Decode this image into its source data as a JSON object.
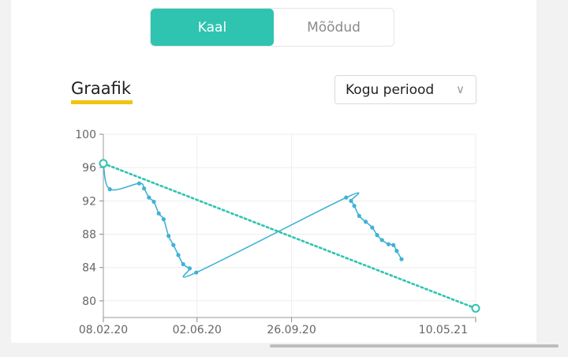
{
  "segment": {
    "active_label": "Kaal",
    "inactive_label": "Mõõdud"
  },
  "section": {
    "title": "Graafik"
  },
  "period_select": {
    "selected": "Kogu periood",
    "icon": "chevron-down-icon"
  },
  "colors": {
    "accent": "#2ec4b0",
    "line": "#3fb2d6",
    "underline": "#f1c40f"
  },
  "chart_data": {
    "type": "line",
    "x_ticks": [
      "08.02.20",
      "02.06.20",
      "26.09.20",
      "10.05.21"
    ],
    "x_range": [
      "08.02.20",
      "10.05.21"
    ],
    "ylim": [
      78,
      100
    ],
    "y_ticks": [
      100,
      96,
      92,
      88,
      84,
      80
    ],
    "grid": true,
    "series": [
      {
        "style": "solid-with-points",
        "points": [
          {
            "x": "08.02.20",
            "y": 96.5
          },
          {
            "x": "16.02.20",
            "y": 93.4
          },
          {
            "x": "23.03.20",
            "y": 94.1
          },
          {
            "x": "29.03.20",
            "y": 93.5
          },
          {
            "x": "04.04.20",
            "y": 92.4
          },
          {
            "x": "10.04.20",
            "y": 91.9
          },
          {
            "x": "16.04.20",
            "y": 90.5
          },
          {
            "x": "22.04.20",
            "y": 89.8
          },
          {
            "x": "28.04.20",
            "y": 87.8
          },
          {
            "x": "04.05.20",
            "y": 86.7
          },
          {
            "x": "10.05.20",
            "y": 85.5
          },
          {
            "x": "16.05.20",
            "y": 84.4
          },
          {
            "x": "24.05.20",
            "y": 83.9
          },
          {
            "x": "01.06.20",
            "y": 83.4
          },
          {
            "x": "02.12.20",
            "y": 92.4
          },
          {
            "x": "08.12.20",
            "y": 92.0
          },
          {
            "x": "12.12.20",
            "y": 91.4
          },
          {
            "x": "18.12.20",
            "y": 90.2
          },
          {
            "x": "26.12.20",
            "y": 89.5
          },
          {
            "x": "03.01.21",
            "y": 88.8
          },
          {
            "x": "09.01.21",
            "y": 87.9
          },
          {
            "x": "15.01.21",
            "y": 87.3
          },
          {
            "x": "23.01.21",
            "y": 86.8
          },
          {
            "x": "29.01.21",
            "y": 86.7
          },
          {
            "x": "02.02.21",
            "y": 86.0
          },
          {
            "x": "08.02.21",
            "y": 85.0
          }
        ]
      },
      {
        "style": "dotted-trend",
        "points": [
          {
            "x": "08.02.20",
            "y": 96.5
          },
          {
            "x": "10.05.21",
            "y": 79.1
          }
        ]
      }
    ]
  }
}
